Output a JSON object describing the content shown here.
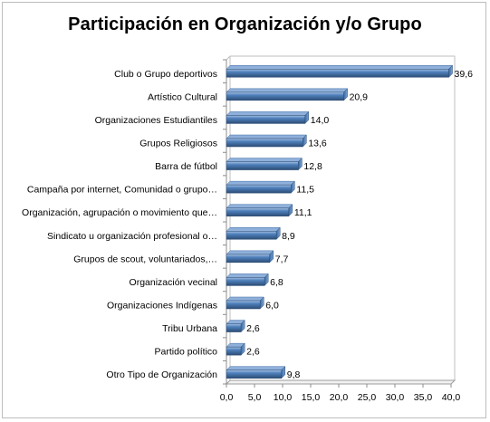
{
  "chart_data": {
    "type": "bar",
    "orientation": "horizontal",
    "title": "Participación en Organización y/o Grupo",
    "xlabel": "",
    "ylabel": "",
    "categories": [
      "Club o Grupo deportivos",
      "Artístico Cultural",
      "Organizaciones Estudiantiles",
      "Grupos Religiosos",
      "Barra de fútbol",
      "Campaña por internet, Comunidad o grupo…",
      "Organización, agrupación o movimiento que…",
      "Sindicato u organización profesional o…",
      "Grupos de scout, voluntariados,…",
      "Organización vecinal",
      "Organizaciones Indígenas",
      "Tribu Urbana",
      "Partido político",
      "Otro Tipo de Organización"
    ],
    "values": [
      39.6,
      20.9,
      14.0,
      13.6,
      12.8,
      11.5,
      11.1,
      8.9,
      7.7,
      6.8,
      6.0,
      2.6,
      2.6,
      9.8
    ],
    "value_labels": [
      "39,6",
      "20,9",
      "14,0",
      "13,6",
      "12,8",
      "11,5",
      "11,1",
      "8,9",
      "7,7",
      "6,8",
      "6,0",
      "2,6",
      "2,6",
      "9,8"
    ],
    "xlim": [
      0,
      40
    ],
    "x_ticks": [
      "0,0",
      "5,0",
      "10,0",
      "15,0",
      "20,0",
      "25,0",
      "30,0",
      "35,0",
      "40,0"
    ],
    "grid": false,
    "legend": "none",
    "colors": {
      "bar": "#4f81bd",
      "bar_dark": "#2c4d75",
      "bar_light": "#a7c0e0"
    }
  }
}
